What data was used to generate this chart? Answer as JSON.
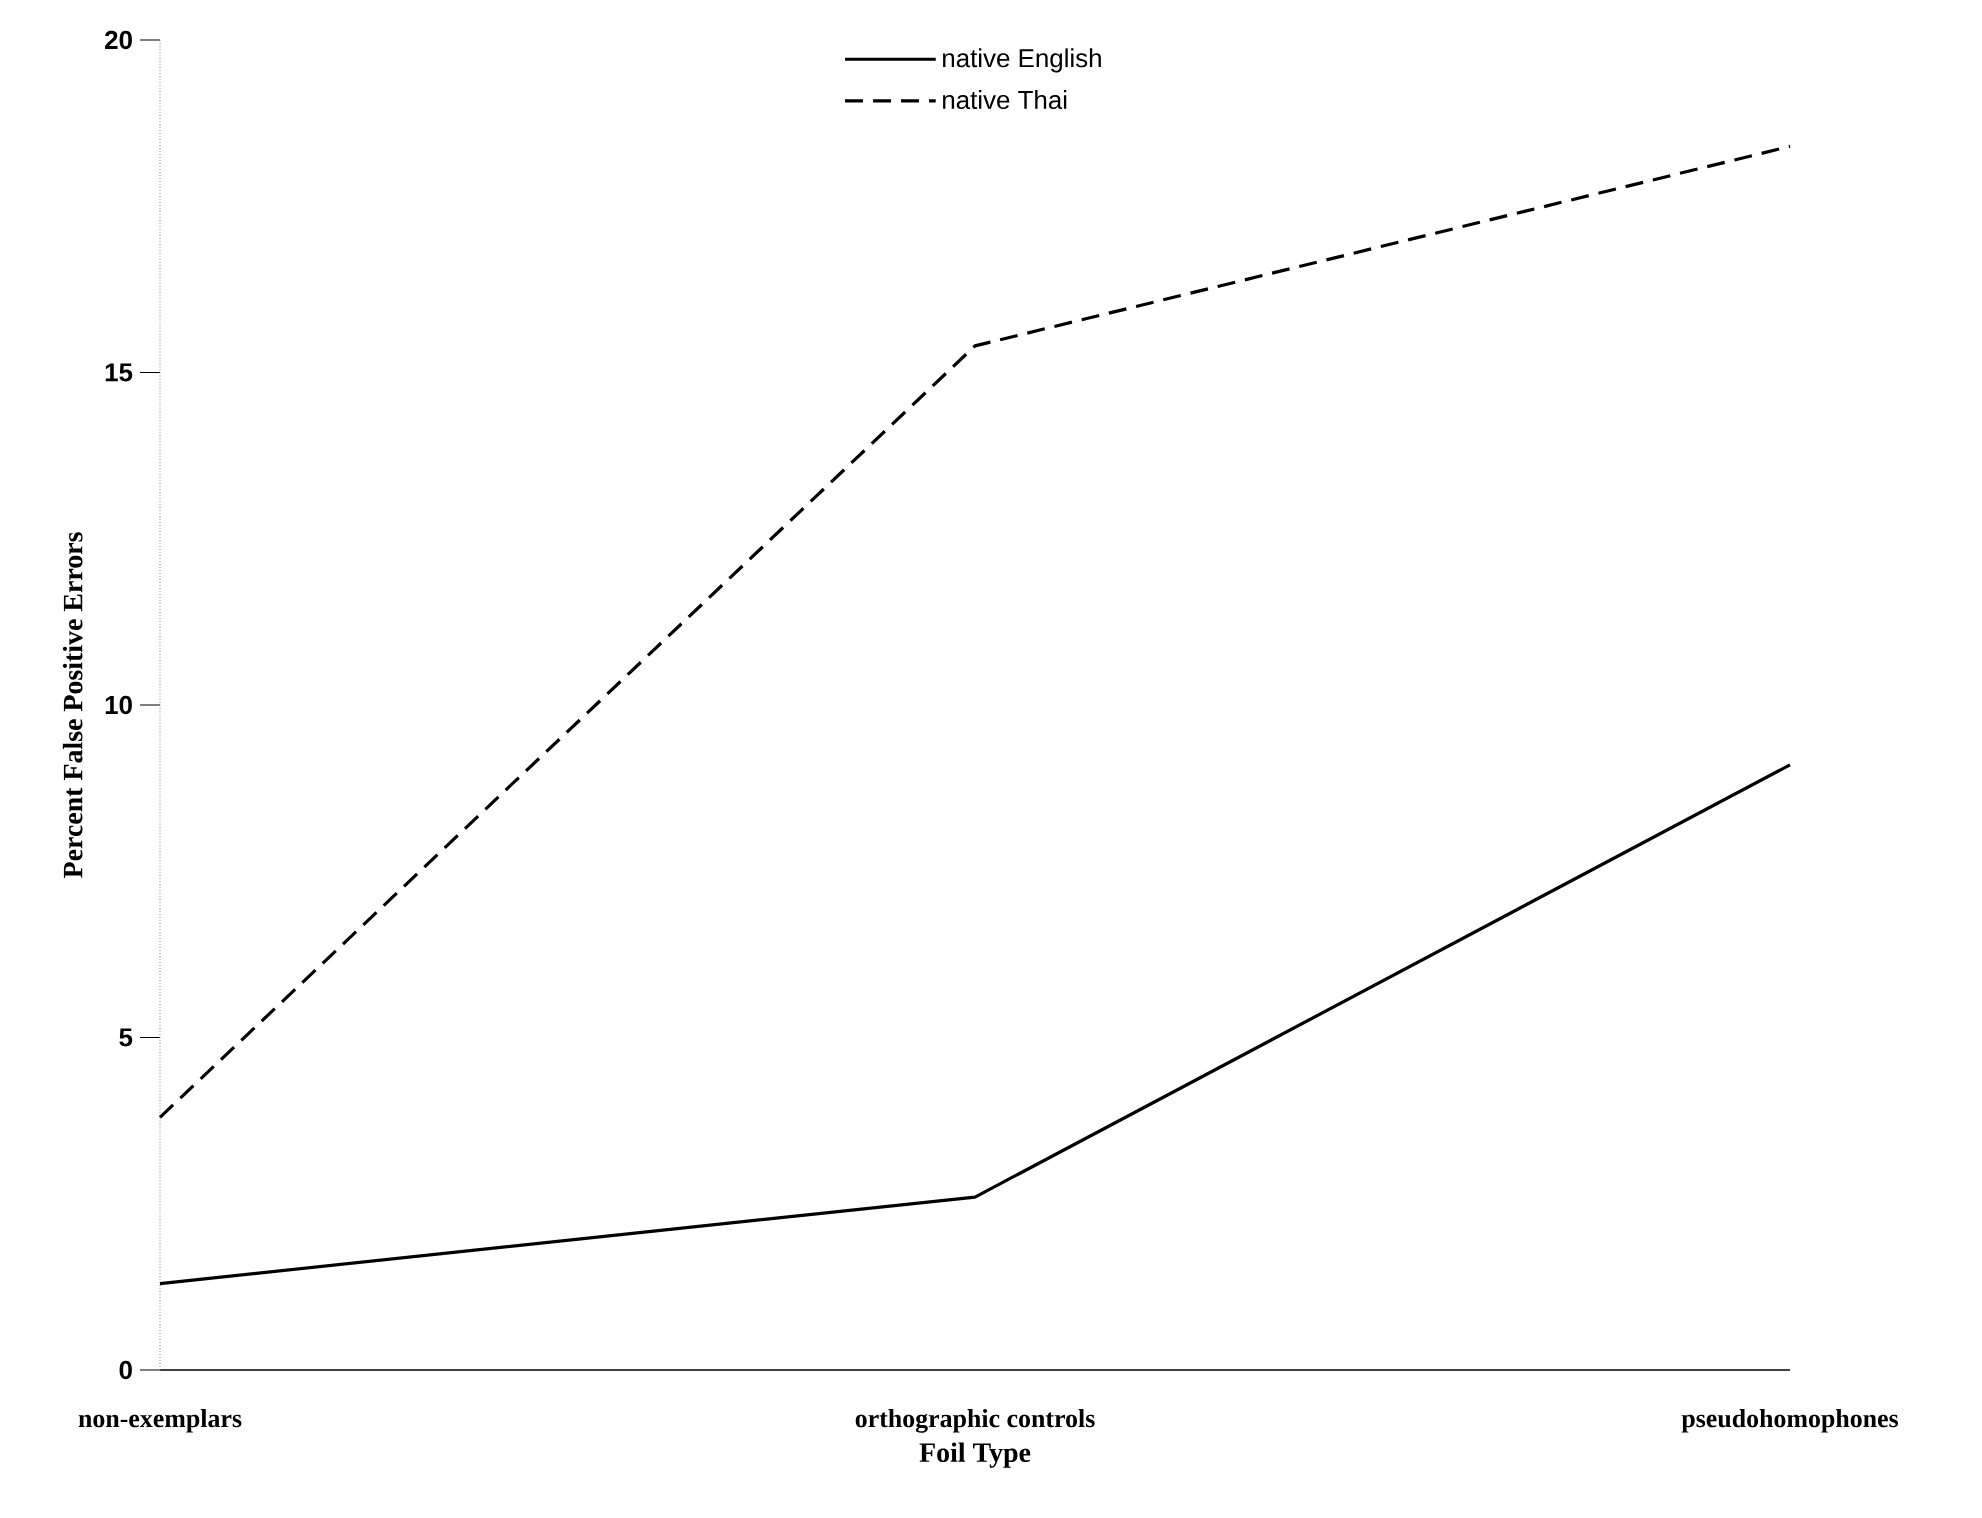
{
  "chart_data": {
    "type": "line",
    "xlabel": "Foil Type",
    "ylabel": "Percent False Positive Errors",
    "categories": [
      "non-exemplars",
      "orthographic controls",
      "pseudohomophones"
    ],
    "series": [
      {
        "name": "native English",
        "color": "#000000",
        "line_style": "solid",
        "values": [
          1.3,
          2.6,
          9.1
        ]
      },
      {
        "name": "native Thai",
        "color": "#000000",
        "line_style": "dashed",
        "values": [
          3.8,
          15.4,
          18.4
        ]
      }
    ],
    "ylim": [
      0,
      20
    ],
    "yticks": [
      0,
      5,
      10,
      15,
      20
    ],
    "legend": "top",
    "marker": "none",
    "grid": false
  }
}
